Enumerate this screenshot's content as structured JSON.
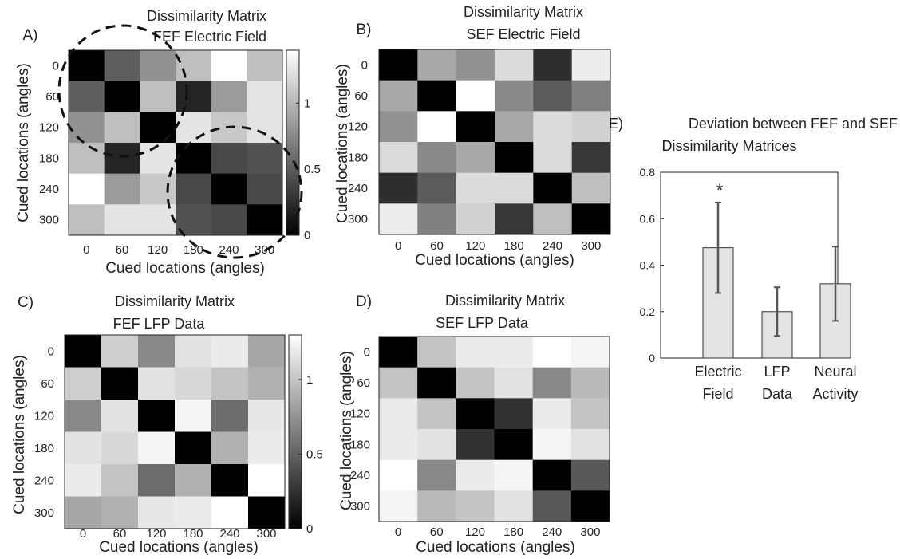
{
  "chart_data": [
    {
      "panel": "A)",
      "type": "heatmap",
      "title": "Dissimilarity Matrix",
      "subtitle": "FEF Electric Field",
      "xlabel": "Cued locations (angles)",
      "ylabel": "Cued locations (angles)",
      "ticks": [
        "0",
        "60",
        "120",
        "180",
        "240",
        "300"
      ],
      "colorbar": {
        "ticks": [
          "0",
          "0.5",
          "1"
        ],
        "range": [
          0,
          1.4
        ]
      },
      "annotations": [
        "dashed circle around angles 0-120 block",
        "dashed circle around angles 180-300 block"
      ],
      "values": [
        [
          0.0,
          0.52,
          0.8,
          1.05,
          1.4,
          1.05
        ],
        [
          0.52,
          0.0,
          1.05,
          0.2,
          0.85,
          1.25
        ],
        [
          0.8,
          1.05,
          0.0,
          1.25,
          1.1,
          1.25
        ],
        [
          1.05,
          0.2,
          1.25,
          0.0,
          0.4,
          0.45
        ],
        [
          1.4,
          0.85,
          1.1,
          0.4,
          0.0,
          0.4
        ],
        [
          1.05,
          1.25,
          1.25,
          0.45,
          0.4,
          0.0
        ]
      ]
    },
    {
      "panel": "B)",
      "type": "heatmap",
      "title": "Dissimilarity Matrix",
      "subtitle": "SEF Electric Field",
      "xlabel": "Cued locations (angles)",
      "ylabel": "Cued locations (angles)",
      "ticks": [
        "0",
        "60",
        "120",
        "180",
        "240",
        "300"
      ],
      "values": [
        [
          0.0,
          0.92,
          0.8,
          1.2,
          0.25,
          1.3
        ],
        [
          0.92,
          0.0,
          1.4,
          0.75,
          0.5,
          0.7
        ],
        [
          0.8,
          1.4,
          0.0,
          0.92,
          1.2,
          1.15
        ],
        [
          1.2,
          0.75,
          0.92,
          0.0,
          1.2,
          0.3
        ],
        [
          0.25,
          0.5,
          1.2,
          1.2,
          0.0,
          1.05
        ],
        [
          1.3,
          0.7,
          1.15,
          0.3,
          1.05,
          0.0
        ]
      ]
    },
    {
      "panel": "C)",
      "type": "heatmap",
      "title": "Dissimilarity Matrix",
      "subtitle": "FEF LFP Data",
      "xlabel": "Cued locations (angles)",
      "ylabel": "Cued locations (angles)",
      "ticks": [
        "0",
        "60",
        "120",
        "180",
        "240",
        "300"
      ],
      "colorbar": {
        "ticks": [
          "0",
          "0.5",
          "1"
        ],
        "range": [
          0,
          1.3
        ]
      },
      "values": [
        [
          0.0,
          1.05,
          0.7,
          1.15,
          1.2,
          0.85
        ],
        [
          1.05,
          0.0,
          1.15,
          1.1,
          1.0,
          0.9
        ],
        [
          0.7,
          1.15,
          0.0,
          1.25,
          0.55,
          1.18
        ],
        [
          1.15,
          1.1,
          1.25,
          0.0,
          0.9,
          1.2
        ],
        [
          1.2,
          1.0,
          0.55,
          0.9,
          0.0,
          1.3
        ],
        [
          0.85,
          0.9,
          1.18,
          1.2,
          1.3,
          0.0
        ]
      ]
    },
    {
      "panel": "D)",
      "type": "heatmap",
      "title": "Dissimilarity Matrix",
      "subtitle": "SEF LFP Data",
      "xlabel": "Cued locations (angles)",
      "ylabel": "Cued locations (angles)",
      "ticks": [
        "0",
        "60",
        "120",
        "180",
        "240",
        "300"
      ],
      "values": [
        [
          0.0,
          1.0,
          1.2,
          1.2,
          1.3,
          1.25
        ],
        [
          1.0,
          0.0,
          1.0,
          1.15,
          0.7,
          0.95
        ],
        [
          1.2,
          1.0,
          0.0,
          0.25,
          1.2,
          1.0
        ],
        [
          1.2,
          1.15,
          0.25,
          0.0,
          1.25,
          1.15
        ],
        [
          1.3,
          0.7,
          1.2,
          1.25,
          0.0,
          0.45
        ],
        [
          1.25,
          0.95,
          1.0,
          1.15,
          0.45,
          0.0
        ]
      ]
    },
    {
      "panel": "E)",
      "type": "bar",
      "title": "Deviation between FEF and SEF",
      "subtitle": "Dissimilarity Matrices",
      "categories": [
        [
          "Electric",
          "Field"
        ],
        [
          "LFP",
          "Data"
        ],
        [
          "Neural",
          "Activity"
        ]
      ],
      "values": [
        0.475,
        0.2,
        0.32
      ],
      "error_low": [
        0.28,
        0.095,
        0.16
      ],
      "error_high": [
        0.67,
        0.305,
        0.48
      ],
      "significance": [
        "*",
        "",
        ""
      ],
      "ylim": [
        0,
        0.8
      ],
      "yticks": [
        "0",
        "0.2",
        "0.4",
        "0.6",
        "0.8"
      ]
    }
  ]
}
